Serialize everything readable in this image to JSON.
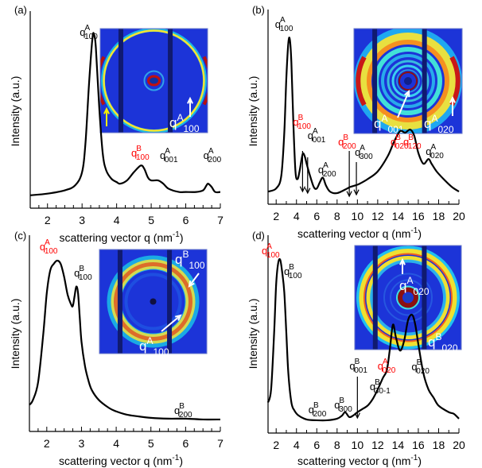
{
  "chart_data": [
    {
      "panel": "(a)",
      "type": "line",
      "xlabel": "scattering vector q (nm⁻¹)",
      "ylabel": "Intensity (a.u.)",
      "xlim": [
        1.5,
        7
      ],
      "ylim": [
        0,
        1
      ],
      "xticks": [
        2,
        3,
        4,
        5,
        6,
        7
      ],
      "minor_tick_step": 0.25,
      "series": [
        {
          "name": "profile",
          "x": [
            1.5,
            2.0,
            2.5,
            2.8,
            3.0,
            3.1,
            3.2,
            3.3,
            3.35,
            3.4,
            3.5,
            3.6,
            3.7,
            3.85,
            4.0,
            4.1,
            4.3,
            4.5,
            4.7,
            4.8,
            4.9,
            5.0,
            5.2,
            5.35,
            5.5,
            5.8,
            6.0,
            6.3,
            6.5,
            6.6,
            6.65,
            6.75,
            6.85,
            7.0
          ],
          "y": [
            0.03,
            0.04,
            0.06,
            0.09,
            0.17,
            0.35,
            0.7,
            0.98,
            1.0,
            0.92,
            0.55,
            0.28,
            0.18,
            0.13,
            0.11,
            0.1,
            0.12,
            0.17,
            0.21,
            0.19,
            0.14,
            0.12,
            0.12,
            0.1,
            0.07,
            0.05,
            0.05,
            0.05,
            0.06,
            0.09,
            0.1,
            0.08,
            0.05,
            0.05
          ]
        }
      ],
      "annotations": [
        {
          "base": "q",
          "sup": "A",
          "sub": "100",
          "x": 3.3,
          "color": "#000000"
        },
        {
          "base": "q",
          "sup": "B",
          "sub": "100",
          "x": 4.7,
          "color": "#ff0000"
        },
        {
          "base": "q",
          "sup": "A",
          "sub": "001",
          "x": 5.25,
          "color": "#000000"
        },
        {
          "base": "q",
          "sup": "A",
          "sub": "200",
          "x": 6.6,
          "color": "#000000"
        }
      ],
      "inset": {
        "labels": [
          {
            "base": "q",
            "sup": "A",
            "sub": "100"
          }
        ],
        "arrows": [
          "white",
          "yellow"
        ]
      }
    },
    {
      "panel": "(b)",
      "type": "line",
      "xlabel": "scattering vector q (nm⁻¹)",
      "ylabel": "Intensity (a.u.)",
      "xlim": [
        1.2,
        20
      ],
      "ylim": [
        0,
        1
      ],
      "xticks": [
        2,
        4,
        6,
        8,
        10,
        12,
        14,
        16,
        18,
        20
      ],
      "minor_tick_step": 1,
      "series": [
        {
          "name": "profile",
          "x": [
            1.2,
            2.0,
            2.5,
            2.8,
            3.0,
            3.2,
            3.35,
            3.5,
            3.7,
            3.9,
            4.1,
            4.3,
            4.6,
            4.8,
            5.0,
            5.3,
            5.7,
            6.0,
            6.3,
            6.6,
            6.9,
            7.3,
            8.0,
            9.0,
            9.3,
            9.8,
            10.2,
            11.0,
            12.0,
            13.0,
            13.6,
            14.2,
            14.7,
            15.2,
            15.6,
            16.0,
            16.5,
            17.0,
            17.3,
            17.8,
            18.5,
            19.3,
            20.0
          ],
          "y": [
            0.02,
            0.04,
            0.12,
            0.4,
            0.75,
            0.98,
            1.0,
            0.85,
            0.45,
            0.15,
            0.1,
            0.15,
            0.26,
            0.25,
            0.2,
            0.13,
            0.05,
            0.04,
            0.08,
            0.11,
            0.06,
            0.02,
            0.01,
            0.04,
            0.05,
            0.06,
            0.07,
            0.1,
            0.15,
            0.25,
            0.34,
            0.41,
            0.4,
            0.42,
            0.38,
            0.27,
            0.2,
            0.23,
            0.2,
            0.15,
            0.1,
            0.05,
            0.02
          ]
        }
      ],
      "annotations": [
        {
          "base": "q",
          "sup": "A",
          "sub": "100",
          "x": 3.3,
          "color": "#000000"
        },
        {
          "base": "q",
          "sup": "B",
          "sub": "100",
          "x": 4.6,
          "color": "#ff0000",
          "arrow": true
        },
        {
          "base": "q",
          "sup": "A",
          "sub": "001",
          "x": 5.1,
          "color": "#000000",
          "arrow": true
        },
        {
          "base": "q",
          "sup": "A",
          "sub": "200",
          "x": 6.6,
          "color": "#000000"
        },
        {
          "base": "q",
          "sup": "B",
          "sub": "200",
          "x": 9.2,
          "color": "#ff0000",
          "arrow": true
        },
        {
          "base": "q",
          "sup": "A",
          "sub": "300",
          "x": 9.9,
          "color": "#000000",
          "arrow": true
        },
        {
          "base": "q",
          "sup": "B",
          "sub": "020",
          "x": 14.2,
          "color": "#ff0000"
        },
        {
          "base": "q",
          "sup": "B",
          "sub": "120",
          "x": 15.3,
          "color": "#ff0000"
        },
        {
          "base": "q",
          "sup": "A",
          "sub": "020",
          "x": 17.2,
          "color": "#000000"
        }
      ],
      "inset": {
        "labels": [
          {
            "base": "q",
            "sup": "A",
            "sub": "001"
          },
          {
            "base": "q",
            "sup": "A",
            "sub": "020"
          }
        ]
      }
    },
    {
      "panel": "(c)",
      "type": "line",
      "xlabel": "scattering vector q (nm⁻¹)",
      "ylabel": "Intensity (a.u.)",
      "xlim": [
        1.5,
        7
      ],
      "ylim": [
        0,
        1
      ],
      "xticks": [
        2,
        3,
        4,
        5,
        6,
        7
      ],
      "minor_tick_step": 0.25,
      "series": [
        {
          "name": "profile",
          "x": [
            1.5,
            1.6,
            1.75,
            1.9,
            2.0,
            2.1,
            2.2,
            2.3,
            2.4,
            2.5,
            2.6,
            2.7,
            2.75,
            2.8,
            2.85,
            2.9,
            2.95,
            3.0,
            3.1,
            3.2,
            3.3,
            3.5,
            3.8,
            4.0,
            4.3,
            4.6,
            5.0,
            5.5,
            6.0,
            6.5,
            7.0
          ],
          "y": [
            0.11,
            0.14,
            0.25,
            0.55,
            0.8,
            0.94,
            0.98,
            1.0,
            0.98,
            0.9,
            0.79,
            0.73,
            0.72,
            0.78,
            0.84,
            0.8,
            0.65,
            0.5,
            0.35,
            0.26,
            0.2,
            0.14,
            0.09,
            0.07,
            0.05,
            0.04,
            0.03,
            0.025,
            0.025,
            0.02,
            0.02
          ]
        }
      ],
      "annotations": [
        {
          "base": "q",
          "sup": "A",
          "sub": "100",
          "x": 2.3,
          "color": "#ff0000"
        },
        {
          "base": "q",
          "sup": "B",
          "sub": "100",
          "x": 2.9,
          "color": "#000000"
        },
        {
          "base": "q",
          "sup": "B",
          "sub": "200",
          "x": 5.9,
          "color": "#000000"
        }
      ],
      "inset": {
        "labels": [
          {
            "base": "q",
            "sup": "B",
            "sub": "100"
          },
          {
            "base": "q",
            "sup": "A",
            "sub": "100"
          }
        ]
      }
    },
    {
      "panel": "(d)",
      "type": "line",
      "xlabel": "scattering vector q (nm⁻¹)",
      "ylabel": "Intensity (a.u.)",
      "xlim": [
        1.2,
        20
      ],
      "ylim": [
        0,
        1
      ],
      "xticks": [
        2,
        4,
        6,
        8,
        10,
        12,
        14,
        16,
        18,
        20
      ],
      "minor_tick_step": 1,
      "series": [
        {
          "name": "profile",
          "x": [
            1.2,
            1.5,
            1.8,
            2.0,
            2.2,
            2.4,
            2.6,
            2.8,
            3.0,
            3.2,
            3.5,
            3.8,
            4.2,
            5.0,
            6.0,
            7.0,
            8.0,
            8.5,
            8.8,
            9.2,
            9.6,
            10.0,
            10.5,
            11.0,
            11.5,
            12.0,
            12.5,
            12.9,
            13.2,
            13.5,
            13.8,
            14.2,
            14.6,
            15.0,
            15.4,
            15.7,
            16.0,
            16.5,
            17.0,
            17.5,
            18.0,
            19.0,
            19.5,
            20.0
          ],
          "y": [
            0.12,
            0.2,
            0.55,
            0.85,
            0.98,
            1.0,
            0.92,
            0.8,
            0.55,
            0.3,
            0.12,
            0.07,
            0.04,
            0.015,
            0.01,
            0.01,
            0.02,
            0.04,
            0.06,
            0.03,
            0.04,
            0.06,
            0.08,
            0.1,
            0.14,
            0.2,
            0.27,
            0.32,
            0.45,
            0.6,
            0.52,
            0.44,
            0.5,
            0.63,
            0.66,
            0.6,
            0.48,
            0.3,
            0.2,
            0.15,
            0.1,
            0.06,
            0.05,
            0.02
          ]
        }
      ],
      "annotations": [
        {
          "base": "q",
          "sup": "A",
          "sub": "100",
          "x": 2.3,
          "color": "#ff0000"
        },
        {
          "base": "q",
          "sup": "B",
          "sub": "100",
          "x": 3.0,
          "color": "#000000"
        },
        {
          "base": "q",
          "sup": "B",
          "sub": "200",
          "x": 5.8,
          "color": "#000000"
        },
        {
          "base": "q",
          "sup": "B",
          "sub": "300",
          "x": 8.5,
          "color": "#000000"
        },
        {
          "base": "q",
          "sup": "B",
          "sub": "001",
          "x": 10.0,
          "color": "#000000",
          "arrow": true
        },
        {
          "base": "q",
          "sup": "B",
          "sub": "30-1",
          "x": 12.0,
          "color": "#000000"
        },
        {
          "base": "q",
          "sup": "A",
          "sub": "020",
          "x": 13.4,
          "color": "#ff0000"
        },
        {
          "base": "q",
          "sup": "B",
          "sub": "020",
          "x": 15.8,
          "color": "#000000"
        }
      ],
      "inset": {
        "labels": [
          {
            "base": "q",
            "sup": "A",
            "sub": "020"
          },
          {
            "base": "q",
            "sup": "B",
            "sub": "020"
          }
        ]
      }
    }
  ]
}
